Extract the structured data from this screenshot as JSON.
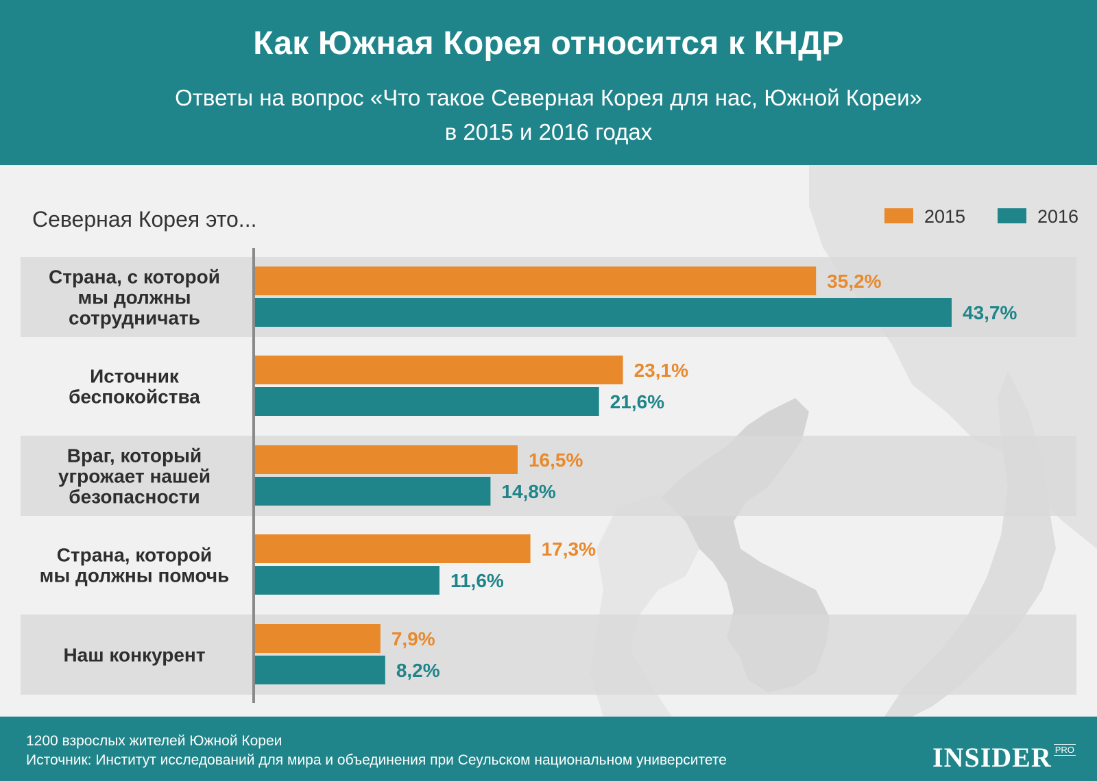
{
  "header": {
    "title": "Как Южная Корея относится к КНДР",
    "subtitle_line1": "Ответы на вопрос «Что такое Северная Корея для нас, Южной Кореи»",
    "subtitle_line2": "в 2015 и 2016 годах"
  },
  "chart_label": "Северная Корея это...",
  "legend": [
    {
      "name": "2015",
      "color": "#e8892c"
    },
    {
      "name": "2016",
      "color": "#1f858a"
    }
  ],
  "chart_data": {
    "type": "bar",
    "orientation": "horizontal",
    "categories": [
      [
        "Страна, с которой",
        "мы должны",
        "сотрудничать"
      ],
      [
        "Источник",
        "беспокойства"
      ],
      [
        "Враг, который",
        "угрожает нашей",
        "безопасности"
      ],
      [
        "Страна, которой",
        "мы должны помочь"
      ],
      [
        "Наш конкурент"
      ]
    ],
    "series": [
      {
        "name": "2015",
        "color": "#e8892c",
        "values": [
          35.2,
          23.1,
          16.5,
          17.3,
          7.9
        ],
        "labels": [
          "35,2%",
          "23,1%",
          "16,5%",
          "17,3%",
          "7,9%"
        ]
      },
      {
        "name": "2016",
        "color": "#1f858a",
        "values": [
          43.7,
          21.6,
          14.8,
          11.6,
          8.2
        ],
        "labels": [
          "43,7%",
          "21,6%",
          "14,8%",
          "11,6%",
          "8,2%"
        ]
      }
    ],
    "unit": "%",
    "legend_position": "top-right"
  },
  "footer": {
    "note": "1200 взрослых жителей Южной Кореи",
    "source": "Источник: Институт исследований для мира и объединения при Сеульском национальном университете",
    "logo_main": "INSIDER",
    "logo_sup": "PRO"
  }
}
